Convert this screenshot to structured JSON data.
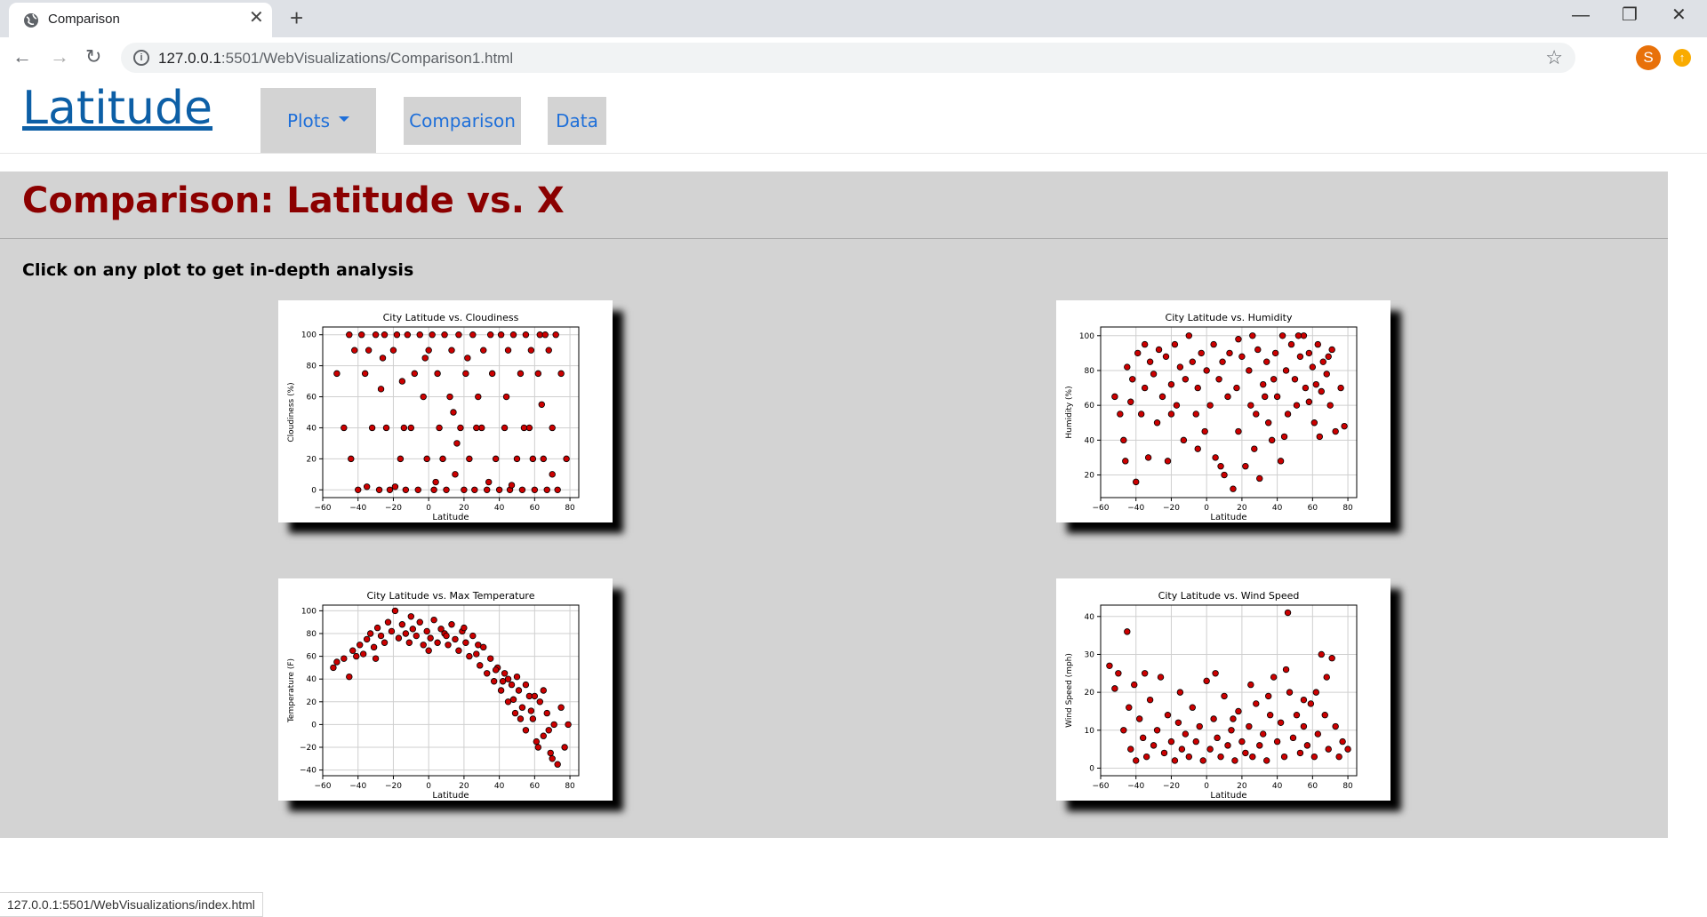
{
  "browser": {
    "tab_title": "Comparison",
    "url_host": "127.0.0.1",
    "url_path": ":5501/WebVisualizations/Comparison1.html",
    "avatar_letter": "S",
    "status_url": "127.0.0.1:5501/WebVisualizations/index.html"
  },
  "nav": {
    "brand": "Latitude",
    "plots_label": "Plots",
    "comparison_label": "Comparison",
    "data_label": "Data"
  },
  "page": {
    "heading": "Comparison: Latitude vs. X",
    "subtext": "Click on any plot to get in-depth analysis"
  },
  "colors": {
    "heading": "#8b0000",
    "marker": "#cc0000",
    "link": "#1e6fd9",
    "panel": "#d3d3d3"
  },
  "chart_data": [
    {
      "type": "scatter",
      "title": "City Latitude vs. Cloudiness",
      "xlabel": "Latitude",
      "ylabel": "Cloudiness (%)",
      "xlim": [
        -60,
        85
      ],
      "ylim": [
        -5,
        105
      ],
      "xticks": [
        -60,
        -40,
        -20,
        0,
        20,
        40,
        60,
        80
      ],
      "yticks": [
        0,
        20,
        40,
        60,
        80,
        100
      ],
      "points": [
        [
          -52,
          75
        ],
        [
          -48,
          40
        ],
        [
          -45,
          100
        ],
        [
          -42,
          90
        ],
        [
          -40,
          0
        ],
        [
          -38,
          100
        ],
        [
          -36,
          75
        ],
        [
          -35,
          2
        ],
        [
          -34,
          90
        ],
        [
          -32,
          40
        ],
        [
          -30,
          100
        ],
        [
          -28,
          0
        ],
        [
          -27,
          65
        ],
        [
          -25,
          100
        ],
        [
          -24,
          40
        ],
        [
          -22,
          0
        ],
        [
          -20,
          90
        ],
        [
          -18,
          100
        ],
        [
          -16,
          20
        ],
        [
          -15,
          70
        ],
        [
          -13,
          0
        ],
        [
          -12,
          100
        ],
        [
          -10,
          40
        ],
        [
          -8,
          75
        ],
        [
          -6,
          0
        ],
        [
          -5,
          100
        ],
        [
          -3,
          60
        ],
        [
          -1,
          20
        ],
        [
          0,
          90
        ],
        [
          2,
          100
        ],
        [
          3,
          0
        ],
        [
          5,
          75
        ],
        [
          6,
          40
        ],
        [
          8,
          20
        ],
        [
          9,
          100
        ],
        [
          10,
          0
        ],
        [
          12,
          60
        ],
        [
          13,
          90
        ],
        [
          15,
          10
        ],
        [
          17,
          100
        ],
        [
          18,
          40
        ],
        [
          20,
          0
        ],
        [
          21,
          75
        ],
        [
          23,
          20
        ],
        [
          25,
          100
        ],
        [
          26,
          0
        ],
        [
          28,
          60
        ],
        [
          30,
          40
        ],
        [
          31,
          90
        ],
        [
          33,
          0
        ],
        [
          35,
          100
        ],
        [
          36,
          75
        ],
        [
          38,
          20
        ],
        [
          40,
          0
        ],
        [
          41,
          100
        ],
        [
          43,
          40
        ],
        [
          45,
          90
        ],
        [
          46,
          0
        ],
        [
          48,
          100
        ],
        [
          50,
          20
        ],
        [
          52,
          75
        ],
        [
          53,
          0
        ],
        [
          55,
          100
        ],
        [
          57,
          40
        ],
        [
          58,
          90
        ],
        [
          60,
          0
        ],
        [
          62,
          75
        ],
        [
          63,
          100
        ],
        [
          65,
          20
        ],
        [
          67,
          0
        ],
        [
          68,
          90
        ],
        [
          70,
          40
        ],
        [
          72,
          100
        ],
        [
          73,
          0
        ],
        [
          75,
          75
        ],
        [
          78,
          20
        ],
        [
          -44,
          20
        ],
        [
          -26,
          85
        ],
        [
          -14,
          40
        ],
        [
          4,
          5
        ],
        [
          14,
          50
        ],
        [
          22,
          85
        ],
        [
          34,
          5
        ],
        [
          44,
          60
        ],
        [
          54,
          40
        ],
        [
          64,
          55
        ],
        [
          70,
          10
        ],
        [
          -2,
          85
        ],
        [
          16,
          30
        ],
        [
          27,
          40
        ],
        [
          47,
          3
        ],
        [
          59,
          20
        ],
        [
          66,
          100
        ],
        [
          -19,
          2
        ]
      ]
    },
    {
      "type": "scatter",
      "title": "City Latitude vs. Humidity",
      "xlabel": "Latitude",
      "ylabel": "Humidity (%)",
      "xlim": [
        -60,
        85
      ],
      "ylim": [
        7,
        105
      ],
      "xticks": [
        -60,
        -40,
        -20,
        0,
        20,
        40,
        60,
        80
      ],
      "yticks": [
        20,
        40,
        60,
        80,
        100
      ],
      "points": [
        [
          -52,
          65
        ],
        [
          -49,
          55
        ],
        [
          -47,
          40
        ],
        [
          -45,
          82
        ],
        [
          -43,
          62
        ],
        [
          -42,
          75
        ],
        [
          -40,
          16
        ],
        [
          -39,
          90
        ],
        [
          -37,
          55
        ],
        [
          -35,
          70
        ],
        [
          -33,
          30
        ],
        [
          -32,
          85
        ],
        [
          -30,
          78
        ],
        [
          -28,
          50
        ],
        [
          -27,
          92
        ],
        [
          -25,
          65
        ],
        [
          -23,
          88
        ],
        [
          -22,
          28
        ],
        [
          -20,
          72
        ],
        [
          -18,
          95
        ],
        [
          -17,
          60
        ],
        [
          -15,
          82
        ],
        [
          -13,
          40
        ],
        [
          -12,
          75
        ],
        [
          -10,
          100
        ],
        [
          -8,
          85
        ],
        [
          -6,
          55
        ],
        [
          -5,
          70
        ],
        [
          -3,
          90
        ],
        [
          -1,
          45
        ],
        [
          0,
          80
        ],
        [
          2,
          60
        ],
        [
          4,
          95
        ],
        [
          5,
          30
        ],
        [
          7,
          75
        ],
        [
          9,
          85
        ],
        [
          10,
          20
        ],
        [
          12,
          65
        ],
        [
          13,
          90
        ],
        [
          15,
          12
        ],
        [
          17,
          70
        ],
        [
          18,
          45
        ],
        [
          20,
          88
        ],
        [
          22,
          25
        ],
        [
          24,
          80
        ],
        [
          25,
          60
        ],
        [
          27,
          35
        ],
        [
          29,
          92
        ],
        [
          30,
          18
        ],
        [
          32,
          72
        ],
        [
          34,
          85
        ],
        [
          35,
          50
        ],
        [
          37,
          40
        ],
        [
          39,
          90
        ],
        [
          40,
          65
        ],
        [
          42,
          28
        ],
        [
          43,
          100
        ],
        [
          45,
          80
        ],
        [
          46,
          55
        ],
        [
          48,
          95
        ],
        [
          50,
          75
        ],
        [
          51,
          60
        ],
        [
          53,
          88
        ],
        [
          55,
          100
        ],
        [
          56,
          70
        ],
        [
          58,
          90
        ],
        [
          60,
          82
        ],
        [
          61,
          50
        ],
        [
          63,
          95
        ],
        [
          65,
          68
        ],
        [
          66,
          85
        ],
        [
          68,
          78
        ],
        [
          70,
          60
        ],
        [
          71,
          92
        ],
        [
          73,
          45
        ],
        [
          76,
          70
        ],
        [
          78,
          48
        ],
        [
          -46,
          28
        ],
        [
          -20,
          55
        ],
        [
          -5,
          35
        ],
        [
          8,
          25
        ],
        [
          28,
          55
        ],
        [
          44,
          42
        ],
        [
          58,
          62
        ],
        [
          64,
          42
        ],
        [
          26,
          100
        ],
        [
          38,
          75
        ],
        [
          52,
          100
        ],
        [
          62,
          72
        ],
        [
          69,
          88
        ],
        [
          -35,
          95
        ],
        [
          18,
          98
        ],
        [
          33,
          65
        ]
      ]
    },
    {
      "type": "scatter",
      "title": "City Latitude vs. Max Temperature",
      "xlabel": "Latitude",
      "ylabel": "Temperature (F)",
      "xlim": [
        -60,
        85
      ],
      "ylim": [
        -45,
        105
      ],
      "xticks": [
        -60,
        -40,
        -20,
        0,
        20,
        40,
        60,
        80
      ],
      "yticks": [
        -40,
        -20,
        0,
        20,
        40,
        60,
        80,
        100
      ],
      "points": [
        [
          -54,
          50
        ],
        [
          -52,
          55
        ],
        [
          -48,
          58
        ],
        [
          -45,
          42
        ],
        [
          -43,
          65
        ],
        [
          -41,
          60
        ],
        [
          -39,
          70
        ],
        [
          -37,
          62
        ],
        [
          -35,
          75
        ],
        [
          -33,
          80
        ],
        [
          -31,
          68
        ],
        [
          -29,
          85
        ],
        [
          -27,
          78
        ],
        [
          -25,
          72
        ],
        [
          -23,
          90
        ],
        [
          -21,
          82
        ],
        [
          -19,
          100
        ],
        [
          -17,
          76
        ],
        [
          -15,
          88
        ],
        [
          -13,
          80
        ],
        [
          -11,
          72
        ],
        [
          -9,
          84
        ],
        [
          -7,
          78
        ],
        [
          -5,
          90
        ],
        [
          -3,
          70
        ],
        [
          -1,
          82
        ],
        [
          1,
          76
        ],
        [
          3,
          92
        ],
        [
          5,
          72
        ],
        [
          7,
          84
        ],
        [
          9,
          80
        ],
        [
          11,
          70
        ],
        [
          13,
          88
        ],
        [
          15,
          75
        ],
        [
          17,
          65
        ],
        [
          19,
          82
        ],
        [
          21,
          72
        ],
        [
          23,
          60
        ],
        [
          25,
          78
        ],
        [
          27,
          62
        ],
        [
          29,
          52
        ],
        [
          31,
          68
        ],
        [
          33,
          45
        ],
        [
          35,
          58
        ],
        [
          37,
          38
        ],
        [
          39,
          50
        ],
        [
          41,
          30
        ],
        [
          43,
          45
        ],
        [
          45,
          20
        ],
        [
          47,
          35
        ],
        [
          49,
          10
        ],
        [
          51,
          30
        ],
        [
          53,
          15
        ],
        [
          55,
          -5
        ],
        [
          57,
          25
        ],
        [
          59,
          5
        ],
        [
          61,
          -15
        ],
        [
          63,
          20
        ],
        [
          65,
          -10
        ],
        [
          67,
          10
        ],
        [
          69,
          -25
        ],
        [
          71,
          0
        ],
        [
          73,
          -35
        ],
        [
          75,
          15
        ],
        [
          77,
          -20
        ],
        [
          79,
          0
        ],
        [
          45,
          40
        ],
        [
          50,
          42
        ],
        [
          55,
          35
        ],
        [
          60,
          25
        ],
        [
          65,
          30
        ],
        [
          48,
          22
        ],
        [
          58,
          12
        ],
        [
          68,
          -5
        ],
        [
          38,
          48
        ],
        [
          42,
          38
        ],
        [
          28,
          70
        ],
        [
          20,
          85
        ],
        [
          -30,
          58
        ],
        [
          -10,
          95
        ],
        [
          0,
          65
        ],
        [
          10,
          78
        ],
        [
          52,
          5
        ],
        [
          62,
          -20
        ],
        [
          70,
          -30
        ]
      ]
    },
    {
      "type": "scatter",
      "title": "City Latitude vs. Wind Speed",
      "xlabel": "Latitude",
      "ylabel": "Wind Speed (mph)",
      "xlim": [
        -60,
        85
      ],
      "ylim": [
        -2,
        43
      ],
      "xticks": [
        -60,
        -40,
        -20,
        0,
        20,
        40,
        60,
        80
      ],
      "yticks": [
        0,
        10,
        20,
        30,
        40
      ],
      "points": [
        [
          -55,
          27
        ],
        [
          -52,
          21
        ],
        [
          -50,
          25
        ],
        [
          -47,
          10
        ],
        [
          -45,
          36
        ],
        [
          -43,
          5
        ],
        [
          -41,
          22
        ],
        [
          -40,
          2
        ],
        [
          -38,
          13
        ],
        [
          -36,
          8
        ],
        [
          -34,
          3
        ],
        [
          -32,
          18
        ],
        [
          -30,
          6
        ],
        [
          -28,
          10
        ],
        [
          -26,
          24
        ],
        [
          -24,
          4
        ],
        [
          -22,
          14
        ],
        [
          -20,
          7
        ],
        [
          -18,
          2
        ],
        [
          -16,
          12
        ],
        [
          -14,
          5
        ],
        [
          -12,
          9
        ],
        [
          -10,
          3
        ],
        [
          -8,
          16
        ],
        [
          -6,
          7
        ],
        [
          -4,
          11
        ],
        [
          -2,
          2
        ],
        [
          0,
          23
        ],
        [
          2,
          5
        ],
        [
          4,
          13
        ],
        [
          6,
          8
        ],
        [
          8,
          3
        ],
        [
          10,
          19
        ],
        [
          12,
          6
        ],
        [
          14,
          10
        ],
        [
          16,
          2
        ],
        [
          18,
          15
        ],
        [
          20,
          7
        ],
        [
          22,
          4
        ],
        [
          24,
          11
        ],
        [
          26,
          3
        ],
        [
          28,
          17
        ],
        [
          30,
          6
        ],
        [
          32,
          9
        ],
        [
          34,
          2
        ],
        [
          36,
          14
        ],
        [
          38,
          24
        ],
        [
          40,
          7
        ],
        [
          42,
          12
        ],
        [
          44,
          3
        ],
        [
          46,
          41
        ],
        [
          47,
          20
        ],
        [
          49,
          8
        ],
        [
          51,
          14
        ],
        [
          53,
          4
        ],
        [
          55,
          11
        ],
        [
          57,
          6
        ],
        [
          59,
          17
        ],
        [
          61,
          3
        ],
        [
          63,
          9
        ],
        [
          65,
          30
        ],
        [
          67,
          14
        ],
        [
          69,
          5
        ],
        [
          71,
          29
        ],
        [
          73,
          11
        ],
        [
          75,
          3
        ],
        [
          77,
          7
        ],
        [
          80,
          5
        ],
        [
          -35,
          25
        ],
        [
          -15,
          20
        ],
        [
          5,
          25
        ],
        [
          25,
          22
        ],
        [
          45,
          26
        ],
        [
          62,
          20
        ],
        [
          -44,
          16
        ],
        [
          15,
          13
        ],
        [
          35,
          19
        ],
        [
          55,
          18
        ],
        [
          68,
          24
        ]
      ]
    }
  ]
}
